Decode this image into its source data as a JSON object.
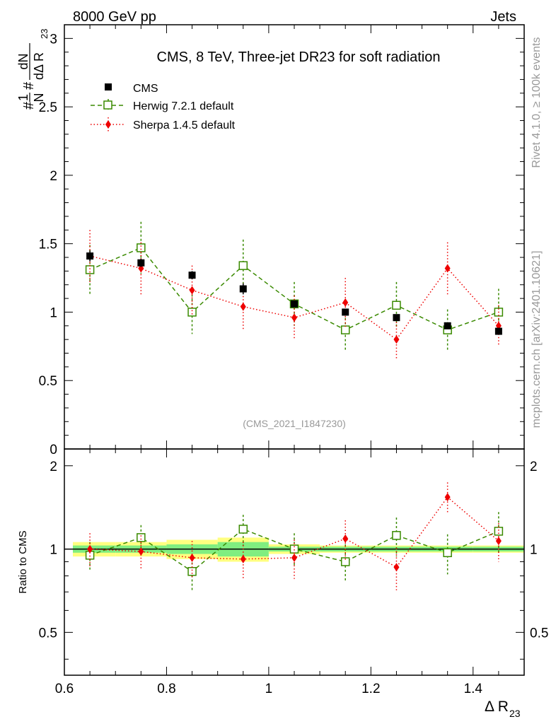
{
  "header": {
    "energy_label": "8000 GeV pp",
    "process_label": "Jets",
    "side_rivet": "Rivet 4.1.0, ≥ 100k events",
    "side_mcplots": "mcplots.cern.ch [arXiv:2401.10621]"
  },
  "chart_data": [
    {
      "type": "scatter",
      "title": "CMS, 8 TeV, Three-jet DR23 for soft radiation",
      "analysis_id": "(CMS_2021_I1847230)",
      "ylabel_parts": {
        "pre": "#",
        "frac1_num": "1",
        "frac1_den": "N",
        "mid": "#",
        "frac2_num": "dN",
        "frac2_den": "dΔ R",
        "sub": "23"
      },
      "xlim": [
        0.6,
        1.5
      ],
      "ylim": [
        0,
        3.1
      ],
      "y_ticks": [
        0,
        0.5,
        1,
        1.5,
        2,
        2.5,
        3
      ],
      "y_tick_labels": [
        "0",
        "0.5",
        "1",
        "1.5",
        "2",
        "2.5",
        "3"
      ],
      "legend": {
        "position": "top-left",
        "entries": [
          {
            "name": "CMS",
            "color": "#000000",
            "marker": "square-filled",
            "line": "none"
          },
          {
            "name": "Herwig 7.2.1 default",
            "color": "#3a8a00",
            "marker": "square-open",
            "line": "dashed"
          },
          {
            "name": "Sherpa 1.4.5 default",
            "color": "#ee0000",
            "marker": "diamond-filled",
            "line": "dotted"
          }
        ]
      },
      "x": [
        0.65,
        0.75,
        0.85,
        0.95,
        1.05,
        1.15,
        1.25,
        1.35,
        1.45
      ],
      "series": [
        {
          "name": "CMS",
          "values": [
            1.41,
            1.36,
            1.27,
            1.17,
            1.06,
            1.0,
            0.96,
            0.9,
            0.86
          ],
          "err": [
            0.04,
            0.03,
            0.03,
            0.04,
            0.02,
            0.02,
            0.02,
            0.02,
            0.02
          ]
        },
        {
          "name": "Herwig 7.2.1 default",
          "values": [
            1.31,
            1.47,
            1.0,
            1.34,
            1.06,
            0.87,
            1.05,
            0.87,
            1.0
          ],
          "err": [
            0.18,
            0.19,
            0.16,
            0.19,
            0.16,
            0.15,
            0.17,
            0.15,
            0.17
          ]
        },
        {
          "name": "Sherpa 1.4.5 default",
          "values": [
            1.41,
            1.32,
            1.16,
            1.04,
            0.96,
            1.07,
            0.8,
            1.32,
            0.9
          ],
          "err": [
            0.19,
            0.19,
            0.18,
            0.17,
            0.16,
            0.18,
            0.15,
            0.19,
            0.15
          ]
        }
      ]
    },
    {
      "type": "scatter",
      "title": "",
      "ylabel": "Ratio to CMS",
      "xlabel_main": "Δ R",
      "xlabel_sub": "23",
      "xlim": [
        0.6,
        1.5
      ],
      "ylim": [
        0.35,
        2.3
      ],
      "x_ticks": [
        0.6,
        0.8,
        1.0,
        1.2,
        1.4
      ],
      "x_tick_labels": [
        "0.6",
        "0.8",
        "1",
        "1.2",
        "1.4"
      ],
      "y_ticks": [
        0.5,
        1,
        2
      ],
      "y_tick_labels": [
        "0.5",
        "1",
        "2"
      ],
      "x": [
        0.65,
        0.75,
        0.85,
        0.95,
        1.05,
        1.15,
        1.25,
        1.35,
        1.45
      ],
      "uncertainty_band_bins": [
        [
          0.6,
          0.7
        ],
        [
          0.7,
          0.8
        ],
        [
          0.8,
          0.9
        ],
        [
          0.9,
          1.0
        ],
        [
          1.0,
          1.1
        ],
        [
          1.1,
          1.2
        ],
        [
          1.2,
          1.3
        ],
        [
          1.3,
          1.4
        ],
        [
          1.4,
          1.5
        ]
      ],
      "band_stat": [
        0.03,
        0.03,
        0.04,
        0.06,
        0.02,
        0.02,
        0.02,
        0.02,
        0.02
      ],
      "band_total": [
        0.06,
        0.06,
        0.08,
        0.1,
        0.04,
        0.03,
        0.03,
        0.03,
        0.03
      ],
      "colors": {
        "band_total": "#ffff80",
        "band_stat": "#80ee80",
        "reference_line": "#000000"
      },
      "series": [
        {
          "name": "Herwig 7.2.1 default",
          "values": [
            0.95,
            1.1,
            0.83,
            1.18,
            1.0,
            0.9,
            1.12,
            0.97,
            1.16
          ],
          "err": [
            0.11,
            0.12,
            0.13,
            0.15,
            0.14,
            0.14,
            0.18,
            0.16,
            0.2
          ]
        },
        {
          "name": "Sherpa 1.4.5 default",
          "values": [
            1.0,
            0.98,
            0.93,
            0.92,
            0.93,
            1.09,
            0.86,
            1.54,
            1.07
          ],
          "err": [
            0.14,
            0.14,
            0.14,
            0.14,
            0.15,
            0.18,
            0.15,
            0.2,
            0.17
          ]
        }
      ]
    }
  ]
}
